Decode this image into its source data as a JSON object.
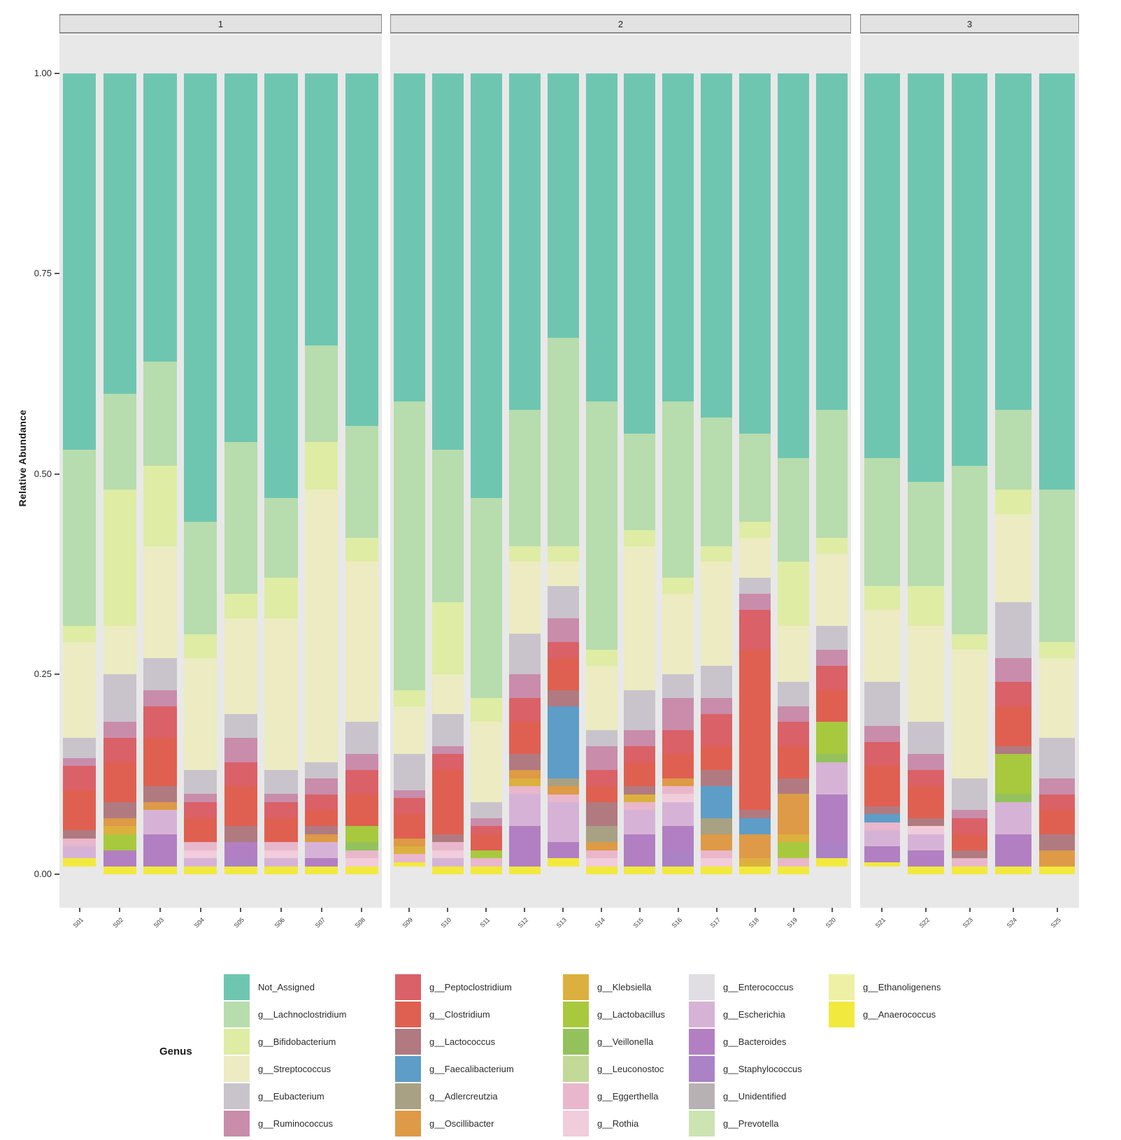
{
  "figure": {
    "y_axis_title": "Relative Abundance",
    "y_ticks": [
      "1.00",
      "0.75",
      "0.50",
      "0.25",
      "0.00"
    ],
    "legend_title": "Genus"
  },
  "chart_data": {
    "type": "bar",
    "subtype": "stacked_relative_abundance_faceted",
    "ylabel": "Relative Abundance",
    "ylim": [
      0,
      1
    ],
    "y_tick_values": [
      1.0,
      0.75,
      0.5,
      0.25,
      0.0
    ],
    "legend_title": "Genus",
    "grid": false,
    "legend_position": "bottom",
    "genera": [
      {
        "name": "Not_Assigned",
        "color": "#6ec6b1"
      },
      {
        "name": "g__Lachnoclostridium",
        "color": "#b7dcad"
      },
      {
        "name": "g__Bifidobacterium",
        "color": "#dfeca4"
      },
      {
        "name": "g__Streptococcus",
        "color": "#ecebc2"
      },
      {
        "name": "g__Eubacterium",
        "color": "#c9c4cb"
      },
      {
        "name": "g__Ruminococcus",
        "color": "#c98cab"
      },
      {
        "name": "g__Peptoclostridium",
        "color": "#da6168"
      },
      {
        "name": "g__Clostridium",
        "color": "#df6050"
      },
      {
        "name": "g__Lactococcus",
        "color": "#b17a80"
      },
      {
        "name": "g__Faecalibacterium",
        "color": "#5d9dc8"
      },
      {
        "name": "g__Adlercreutzia",
        "color": "#a8a183"
      },
      {
        "name": "g__Oscillibacter",
        "color": "#de9a47"
      },
      {
        "name": "g__Klebsiella",
        "color": "#dcb03e"
      },
      {
        "name": "g__Lactobacillus",
        "color": "#a8c93e"
      },
      {
        "name": "g__Veillonella",
        "color": "#93c25d"
      },
      {
        "name": "g__Leuconostoc",
        "color": "#c2d998"
      },
      {
        "name": "g__Eggerthella",
        "color": "#e9b7cb"
      },
      {
        "name": "g__Rothia",
        "color": "#f1ccdb"
      },
      {
        "name": "g__Enterococcus",
        "color": "#e0dde3"
      },
      {
        "name": "g__Escherichia",
        "color": "#d6b3d6"
      },
      {
        "name": "g__Bacteroides",
        "color": "#b27fc2"
      },
      {
        "name": "g__Staphylococcus",
        "color": "#ab82c5"
      },
      {
        "name": "g__Unidentified",
        "color": "#b8b1b3"
      },
      {
        "name": "g__Prevotella",
        "color": "#cce3b2"
      },
      {
        "name": "g__Ethanoligenens",
        "color": "#eef0a6"
      },
      {
        "name": "g__Anaerococcus",
        "color": "#f2e93e"
      }
    ],
    "legend_columns": [
      [
        "Not_Assigned",
        "g__Lachnoclostridium",
        "g__Bifidobacterium",
        "g__Streptococcus",
        "g__Eubacterium",
        "g__Ruminococcus"
      ],
      [
        "g__Peptoclostridium",
        "g__Clostridium",
        "g__Lactococcus",
        "g__Faecalibacterium",
        "g__Adlercreutzia",
        "g__Oscillibacter"
      ],
      [
        "g__Klebsiella",
        "g__Lactobacillus",
        "g__Veillonella",
        "g__Leuconostoc",
        "g__Eggerthella",
        "g__Rothia"
      ],
      [
        "g__Enterococcus",
        "g__Escherichia",
        "g__Bacteroides",
        "g__Staphylococcus",
        "g__Unidentified",
        "g__Prevotella"
      ],
      [
        "g__Ethanoligenens",
        "g__Anaerococcus"
      ]
    ],
    "facets": [
      {
        "label": "1",
        "samples": [
          {
            "id": "S01",
            "composition": {
              "Not_Assigned": 0.47,
              "g__Lachnoclostridium": 0.22,
              "g__Bifidobacterium": 0.02,
              "g__Streptococcus": 0.12,
              "g__Eubacterium": 0.025,
              "g__Ruminococcus": 0.01,
              "g__Peptoclostridium": 0.03,
              "g__Clostridium": 0.05,
              "g__Lactococcus": 0.01,
              "g__Escherichia": 0.015,
              "g__Eggerthella": 0.01,
              "g__Anaerococcus": 0.01
            }
          },
          {
            "id": "S02",
            "composition": {
              "Not_Assigned": 0.4,
              "g__Lachnoclostridium": 0.12,
              "g__Bifidobacterium": 0.17,
              "g__Streptococcus": 0.06,
              "g__Eubacterium": 0.06,
              "g__Ruminococcus": 0.02,
              "g__Peptoclostridium": 0.03,
              "g__Clostridium": 0.05,
              "g__Lactococcus": 0.02,
              "g__Bacteroides": 0.02,
              "g__Lactobacillus": 0.02,
              "g__Oscillibacter": 0.01,
              "g__Klebsiella": 0.01,
              "g__Anaerococcus": 0.01
            }
          },
          {
            "id": "S03",
            "composition": {
              "Not_Assigned": 0.36,
              "g__Lachnoclostridium": 0.13,
              "g__Bifidobacterium": 0.1,
              "g__Streptococcus": 0.14,
              "g__Eubacterium": 0.04,
              "g__Ruminococcus": 0.02,
              "g__Peptoclostridium": 0.04,
              "g__Clostridium": 0.06,
              "g__Lactococcus": 0.02,
              "g__Escherichia": 0.03,
              "g__Bacteroides": 0.04,
              "g__Oscillibacter": 0.01,
              "g__Anaerococcus": 0.01
            }
          },
          {
            "id": "S04",
            "composition": {
              "Not_Assigned": 0.56,
              "g__Lachnoclostridium": 0.14,
              "g__Bifidobacterium": 0.03,
              "g__Streptococcus": 0.14,
              "g__Eubacterium": 0.03,
              "g__Ruminococcus": 0.01,
              "g__Peptoclostridium": 0.02,
              "g__Clostridium": 0.03,
              "g__Escherichia": 0.01,
              "g__Eggerthella": 0.01,
              "g__Rothia": 0.01,
              "g__Anaerococcus": 0.01
            }
          },
          {
            "id": "S05",
            "composition": {
              "Not_Assigned": 0.46,
              "g__Lachnoclostridium": 0.19,
              "g__Bifidobacterium": 0.03,
              "g__Streptococcus": 0.12,
              "g__Eubacterium": 0.03,
              "g__Ruminococcus": 0.03,
              "g__Peptoclostridium": 0.03,
              "g__Clostridium": 0.05,
              "g__Lactococcus": 0.02,
              "g__Bacteroides": 0.02,
              "g__Staphylococcus": 0.01,
              "g__Anaerococcus": 0.01
            }
          },
          {
            "id": "S06",
            "composition": {
              "Not_Assigned": 0.53,
              "g__Lachnoclostridium": 0.1,
              "g__Bifidobacterium": 0.05,
              "g__Streptococcus": 0.19,
              "g__Eubacterium": 0.03,
              "g__Ruminococcus": 0.01,
              "g__Peptoclostridium": 0.02,
              "g__Clostridium": 0.03,
              "g__Escherichia": 0.01,
              "g__Eggerthella": 0.01,
              "g__Rothia": 0.01,
              "g__Anaerococcus": 0.01
            }
          },
          {
            "id": "S07",
            "composition": {
              "Not_Assigned": 0.34,
              "g__Lachnoclostridium": 0.12,
              "g__Bifidobacterium": 0.06,
              "g__Streptococcus": 0.34,
              "g__Eubacterium": 0.02,
              "g__Ruminococcus": 0.02,
              "g__Peptoclostridium": 0.02,
              "g__Clostridium": 0.02,
              "g__Lactococcus": 0.01,
              "g__Escherichia": 0.02,
              "g__Bacteroides": 0.01,
              "g__Oscillibacter": 0.01,
              "g__Anaerococcus": 0.01
            }
          },
          {
            "id": "S08",
            "composition": {
              "Not_Assigned": 0.44,
              "g__Lachnoclostridium": 0.14,
              "g__Bifidobacterium": 0.03,
              "g__Streptococcus": 0.2,
              "g__Eubacterium": 0.04,
              "g__Ruminococcus": 0.02,
              "g__Peptoclostridium": 0.03,
              "g__Clostridium": 0.04,
              "g__Lactobacillus": 0.02,
              "g__Veillonella": 0.01,
              "g__Eggerthella": 0.01,
              "g__Rothia": 0.01,
              "g__Anaerococcus": 0.01
            }
          }
        ]
      },
      {
        "label": "2",
        "samples": [
          {
            "id": "S09",
            "composition": {
              "Not_Assigned": 0.41,
              "g__Lachnoclostridium": 0.36,
              "g__Bifidobacterium": 0.02,
              "g__Streptococcus": 0.06,
              "g__Eubacterium": 0.045,
              "g__Ruminococcus": 0.01,
              "g__Peptoclostridium": 0.02,
              "g__Clostridium": 0.03,
              "g__Oscillibacter": 0.01,
              "g__Klebsiella": 0.01,
              "g__Eggerthella": 0.01,
              "g__Anaerococcus": 0.005
            }
          },
          {
            "id": "S10",
            "composition": {
              "Not_Assigned": 0.47,
              "g__Lachnoclostridium": 0.19,
              "g__Bifidobacterium": 0.09,
              "g__Streptococcus": 0.05,
              "g__Eubacterium": 0.04,
              "g__Ruminococcus": 0.01,
              "g__Peptoclostridium": 0.02,
              "g__Clostridium": 0.08,
              "g__Lactococcus": 0.01,
              "g__Escherichia": 0.01,
              "g__Eggerthella": 0.01,
              "g__Rothia": 0.01,
              "g__Anaerococcus": 0.01
            }
          },
          {
            "id": "S11",
            "composition": {
              "Not_Assigned": 0.53,
              "g__Lachnoclostridium": 0.25,
              "g__Bifidobacterium": 0.03,
              "g__Streptococcus": 0.1,
              "g__Eubacterium": 0.02,
              "g__Ruminococcus": 0.01,
              "g__Peptoclostridium": 0.01,
              "g__Clostridium": 0.02,
              "g__Lactobacillus": 0.01,
              "g__Eggerthella": 0.01,
              "g__Anaerococcus": 0.01
            }
          },
          {
            "id": "S12",
            "composition": {
              "Not_Assigned": 0.42,
              "g__Lachnoclostridium": 0.17,
              "g__Bifidobacterium": 0.02,
              "g__Streptococcus": 0.09,
              "g__Eubacterium": 0.05,
              "g__Ruminococcus": 0.03,
              "g__Peptoclostridium": 0.03,
              "g__Clostridium": 0.04,
              "g__Lactococcus": 0.02,
              "g__Escherichia": 0.04,
              "g__Bacteroides": 0.05,
              "g__Oscillibacter": 0.01,
              "g__Klebsiella": 0.01,
              "g__Eggerthella": 0.01,
              "g__Anaerococcus": 0.01
            }
          },
          {
            "id": "S13",
            "composition": {
              "Not_Assigned": 0.33,
              "g__Lachnoclostridium": 0.26,
              "g__Bifidobacterium": 0.02,
              "g__Streptococcus": 0.03,
              "g__Eubacterium": 0.04,
              "g__Ruminococcus": 0.03,
              "g__Peptoclostridium": 0.02,
              "g__Clostridium": 0.04,
              "g__Faecalibacterium": 0.09,
              "g__Lactococcus": 0.02,
              "g__Escherichia": 0.05,
              "g__Bacteroides": 0.02,
              "g__Adlercreutzia": 0.01,
              "g__Oscillibacter": 0.01,
              "g__Eggerthella": 0.01,
              "g__Anaerococcus": 0.01
            }
          },
          {
            "id": "S14",
            "composition": {
              "Not_Assigned": 0.41,
              "g__Lachnoclostridium": 0.31,
              "g__Bifidobacterium": 0.02,
              "g__Streptococcus": 0.08,
              "g__Eubacterium": 0.02,
              "g__Ruminococcus": 0.03,
              "g__Peptoclostridium": 0.02,
              "g__Clostridium": 0.02,
              "g__Lactococcus": 0.03,
              "g__Adlercreutzia": 0.02,
              "g__Oscillibacter": 0.01,
              "g__Eggerthella": 0.01,
              "g__Rothia": 0.01,
              "g__Anaerococcus": 0.01
            }
          },
          {
            "id": "S15",
            "composition": {
              "Not_Assigned": 0.45,
              "g__Lachnoclostridium": 0.12,
              "g__Bifidobacterium": 0.02,
              "g__Streptococcus": 0.18,
              "g__Eubacterium": 0.05,
              "g__Ruminococcus": 0.02,
              "g__Peptoclostridium": 0.02,
              "g__Clostridium": 0.03,
              "g__Lactococcus": 0.01,
              "g__Escherichia": 0.03,
              "g__Bacteroides": 0.04,
              "g__Klebsiella": 0.01,
              "g__Eggerthella": 0.01,
              "g__Anaerococcus": 0.01
            }
          },
          {
            "id": "S16",
            "composition": {
              "Not_Assigned": 0.41,
              "g__Lachnoclostridium": 0.22,
              "g__Bifidobacterium": 0.02,
              "g__Streptococcus": 0.1,
              "g__Eubacterium": 0.03,
              "g__Ruminococcus": 0.04,
              "g__Peptoclostridium": 0.03,
              "g__Clostridium": 0.03,
              "g__Escherichia": 0.03,
              "g__Bacteroides": 0.03,
              "g__Staphylococcus": 0.02,
              "g__Oscillibacter": 0.01,
              "g__Eggerthella": 0.01,
              "g__Rothia": 0.01,
              "g__Anaerococcus": 0.01
            }
          },
          {
            "id": "S17",
            "composition": {
              "Not_Assigned": 0.43,
              "g__Lachnoclostridium": 0.16,
              "g__Bifidobacterium": 0.02,
              "g__Streptococcus": 0.13,
              "g__Eubacterium": 0.04,
              "g__Ruminococcus": 0.02,
              "g__Peptoclostridium": 0.04,
              "g__Clostridium": 0.03,
              "g__Faecalibacterium": 0.04,
              "g__Lactococcus": 0.02,
              "g__Adlercreutzia": 0.02,
              "g__Oscillibacter": 0.02,
              "g__Eggerthella": 0.01,
              "g__Rothia": 0.01,
              "g__Anaerococcus": 0.01
            }
          },
          {
            "id": "S18",
            "composition": {
              "Not_Assigned": 0.45,
              "g__Lachnoclostridium": 0.11,
              "g__Bifidobacterium": 0.02,
              "g__Streptococcus": 0.05,
              "g__Eubacterium": 0.02,
              "g__Ruminococcus": 0.02,
              "g__Peptoclostridium": 0.05,
              "g__Clostridium": 0.2,
              "g__Faecalibacterium": 0.02,
              "g__Lactococcus": 0.01,
              "g__Oscillibacter": 0.03,
              "g__Klebsiella": 0.01,
              "g__Anaerococcus": 0.01
            }
          },
          {
            "id": "S19",
            "composition": {
              "Not_Assigned": 0.48,
              "g__Lachnoclostridium": 0.13,
              "g__Bifidobacterium": 0.08,
              "g__Streptococcus": 0.07,
              "g__Eubacterium": 0.03,
              "g__Ruminococcus": 0.02,
              "g__Peptoclostridium": 0.03,
              "g__Clostridium": 0.04,
              "g__Lactococcus": 0.02,
              "g__Oscillibacter": 0.05,
              "g__Klebsiella": 0.01,
              "g__Lactobacillus": 0.02,
              "g__Eggerthella": 0.01,
              "g__Anaerococcus": 0.01
            }
          },
          {
            "id": "S20",
            "composition": {
              "Not_Assigned": 0.42,
              "g__Lachnoclostridium": 0.16,
              "g__Bifidobacterium": 0.02,
              "g__Streptococcus": 0.09,
              "g__Eubacterium": 0.03,
              "g__Ruminococcus": 0.02,
              "g__Peptoclostridium": 0.03,
              "g__Clostridium": 0.04,
              "g__Escherichia": 0.04,
              "g__Bacteroides": 0.06,
              "g__Staphylococcus": 0.02,
              "g__Lactobacillus": 0.04,
              "g__Veillonella": 0.01,
              "g__Anaerococcus": 0.01
            }
          }
        ]
      },
      {
        "label": "3",
        "samples": [
          {
            "id": "S21",
            "composition": {
              "Not_Assigned": 0.48,
              "g__Lachnoclostridium": 0.16,
              "g__Bifidobacterium": 0.03,
              "g__Streptococcus": 0.09,
              "g__Eubacterium": 0.055,
              "g__Ruminococcus": 0.02,
              "g__Peptoclostridium": 0.03,
              "g__Clostridium": 0.05,
              "g__Faecalibacterium": 0.01,
              "g__Lactococcus": 0.01,
              "g__Escherichia": 0.02,
              "g__Bacteroides": 0.02,
              "g__Eggerthella": 0.01,
              "g__Anaerococcus": 0.005
            }
          },
          {
            "id": "S22",
            "composition": {
              "Not_Assigned": 0.51,
              "g__Lachnoclostridium": 0.13,
              "g__Bifidobacterium": 0.05,
              "g__Streptococcus": 0.12,
              "g__Eubacterium": 0.04,
              "g__Ruminococcus": 0.02,
              "g__Peptoclostridium": 0.02,
              "g__Clostridium": 0.04,
              "g__Lactococcus": 0.01,
              "g__Escherichia": 0.02,
              "g__Bacteroides": 0.02,
              "g__Rothia": 0.01,
              "g__Anaerococcus": 0.01
            }
          },
          {
            "id": "S23",
            "composition": {
              "Not_Assigned": 0.49,
              "g__Lachnoclostridium": 0.21,
              "g__Bifidobacterium": 0.02,
              "g__Streptococcus": 0.16,
              "g__Eubacterium": 0.04,
              "g__Ruminococcus": 0.01,
              "g__Peptoclostridium": 0.02,
              "g__Clostridium": 0.02,
              "g__Lactococcus": 0.01,
              "g__Eggerthella": 0.01,
              "g__Anaerococcus": 0.01
            }
          },
          {
            "id": "S24",
            "composition": {
              "Not_Assigned": 0.42,
              "g__Lachnoclostridium": 0.1,
              "g__Bifidobacterium": 0.03,
              "g__Streptococcus": 0.11,
              "g__Eubacterium": 0.07,
              "g__Ruminococcus": 0.03,
              "g__Peptoclostridium": 0.03,
              "g__Clostridium": 0.05,
              "g__Lactococcus": 0.01,
              "g__Escherichia": 0.04,
              "g__Bacteroides": 0.04,
              "g__Lactobacillus": 0.05,
              "g__Veillonella": 0.01,
              "g__Anaerococcus": 0.01
            }
          },
          {
            "id": "S25",
            "composition": {
              "Not_Assigned": 0.52,
              "g__Lachnoclostridium": 0.19,
              "g__Bifidobacterium": 0.02,
              "g__Streptococcus": 0.1,
              "g__Eubacterium": 0.05,
              "g__Ruminococcus": 0.02,
              "g__Peptoclostridium": 0.02,
              "g__Clostridium": 0.03,
              "g__Lactococcus": 0.02,
              "g__Oscillibacter": 0.02,
              "g__Anaerococcus": 0.01
            }
          }
        ]
      }
    ]
  }
}
